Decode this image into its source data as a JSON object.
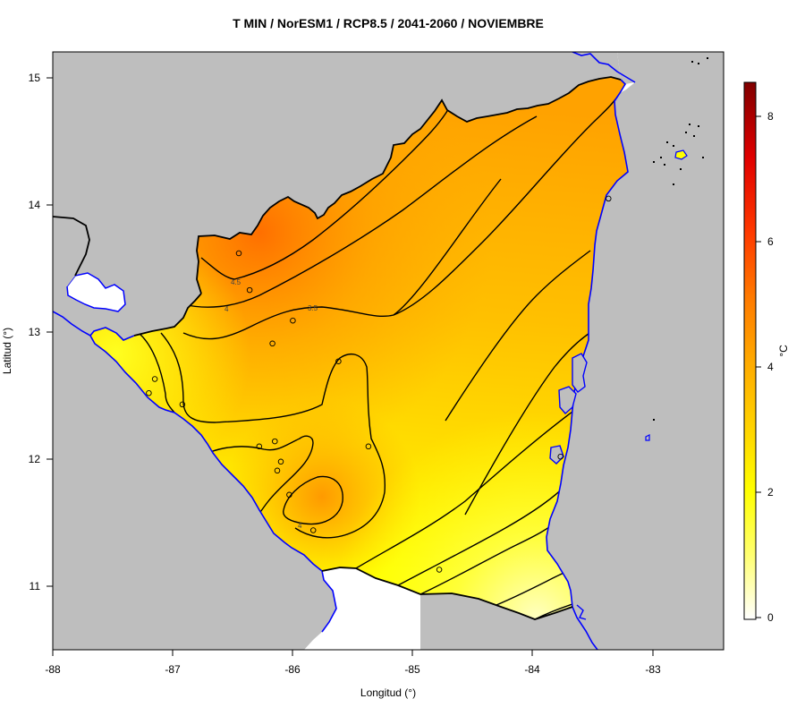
{
  "title": "T MIN / NorESM1 / RCP8.5 / 2041-2060 / NOVIEMBRE",
  "x_axis": {
    "label": "Longitud (°)",
    "ticks": [
      "-88",
      "-87",
      "-86",
      "-85",
      "-84",
      "-83"
    ]
  },
  "y_axis": {
    "label": "Latitud (°)",
    "ticks": [
      "11",
      "12",
      "13",
      "14",
      "15"
    ]
  },
  "colorbar": {
    "unit": "°C",
    "ticks": [
      "0",
      "2",
      "4",
      "6",
      "8"
    ],
    "range": [
      -0.2,
      8.6
    ],
    "colors": [
      "#ffffff",
      "#ffff66",
      "#ffff00",
      "#ffd000",
      "#ffaa00",
      "#ff7700",
      "#ff3300",
      "#ee0000",
      "#8b0000"
    ]
  },
  "contour_labels": [
    "4.5",
    "4",
    "3.5",
    "4"
  ],
  "colors": {
    "land_outside": "#bebebe",
    "water": "#ffffff",
    "coast": "#0000ff",
    "border": "#000000"
  },
  "chart_data": {
    "type": "heatmap",
    "title": "T MIN / NorESM1 / RCP8.5 / 2041-2060 / NOVIEMBRE",
    "xlabel": "Longitud (°)",
    "ylabel": "Latitud (°)",
    "xlim": [
      -88,
      -82.4
    ],
    "ylim": [
      10.5,
      15.2
    ],
    "value_range": [
      0,
      8
    ],
    "contour_levels": [
      1.5,
      2,
      2.5,
      3,
      3.5,
      4,
      4.5
    ],
    "stations": [
      {
        "lon": -86.45,
        "lat": 13.62
      },
      {
        "lon": -86.36,
        "lat": 13.33
      },
      {
        "lon": -86.0,
        "lat": 13.09
      },
      {
        "lon": -86.17,
        "lat": 12.91
      },
      {
        "lon": -85.62,
        "lat": 12.77
      },
      {
        "lon": -87.15,
        "lat": 12.63
      },
      {
        "lon": -87.2,
        "lat": 12.52
      },
      {
        "lon": -86.92,
        "lat": 12.43
      },
      {
        "lon": -86.28,
        "lat": 12.1
      },
      {
        "lon": -86.15,
        "lat": 12.14
      },
      {
        "lon": -86.1,
        "lat": 11.98
      },
      {
        "lon": -86.13,
        "lat": 11.91
      },
      {
        "lon": -86.03,
        "lat": 11.72
      },
      {
        "lon": -85.83,
        "lat": 11.44
      },
      {
        "lon": -85.37,
        "lat": 12.1
      },
      {
        "lon": -84.78,
        "lat": 11.13
      },
      {
        "lon": -83.77,
        "lat": 12.02
      },
      {
        "lon": -83.37,
        "lat": 14.05
      }
    ]
  }
}
